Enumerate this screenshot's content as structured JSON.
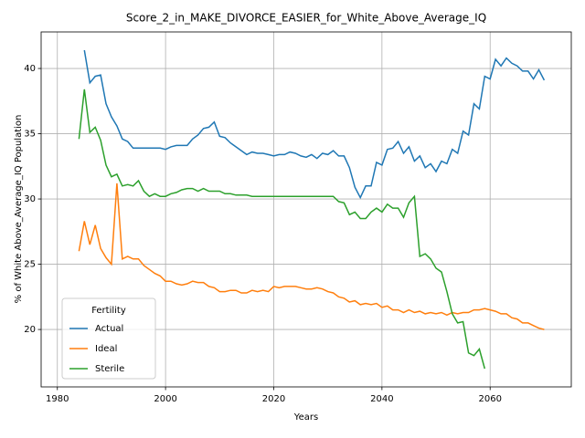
{
  "chart_data": {
    "type": "line",
    "title": "Score_2_in_MAKE_DIVORCE_EASIER_for_White_Above_Average_IQ",
    "xlabel": "Years",
    "ylabel": "% of White Above_Average_IQ Population",
    "legend_title": "Fertility",
    "legend": "lower left",
    "grid": true,
    "xlim": [
      1977,
      2075
    ],
    "ylim": [
      15.6,
      42.8
    ],
    "xticks": [
      1980,
      2000,
      2020,
      2040,
      2060
    ],
    "yticks": [
      20,
      25,
      30,
      35,
      40
    ],
    "x": [
      1984,
      1985,
      1986,
      1987,
      1988,
      1989,
      1990,
      1991,
      1992,
      1993,
      1994,
      1995,
      1996,
      1997,
      1998,
      1999,
      2000,
      2001,
      2002,
      2003,
      2004,
      2005,
      2006,
      2007,
      2008,
      2009,
      2010,
      2011,
      2012,
      2013,
      2014,
      2015,
      2016,
      2017,
      2018,
      2019,
      2020,
      2021,
      2022,
      2023,
      2024,
      2025,
      2026,
      2027,
      2028,
      2029,
      2030,
      2031,
      2032,
      2033,
      2034,
      2035,
      2036,
      2037,
      2038,
      2039,
      2040,
      2041,
      2042,
      2043,
      2044,
      2045,
      2046,
      2047,
      2048,
      2049,
      2050,
      2051,
      2052,
      2053,
      2054,
      2055,
      2056,
      2057,
      2058,
      2059,
      2060,
      2061,
      2062,
      2063,
      2064,
      2065,
      2066,
      2067,
      2068,
      2069,
      2070
    ],
    "series": [
      {
        "name": "Actual",
        "color": "#1f77b4",
        "values": [
          null,
          41.4,
          38.9,
          39.4,
          39.5,
          37.3,
          36.3,
          35.6,
          34.6,
          34.4,
          33.9,
          33.9,
          33.9,
          33.9,
          33.9,
          33.9,
          33.8,
          34.0,
          34.1,
          34.1,
          34.1,
          34.6,
          34.9,
          35.4,
          35.5,
          35.9,
          34.8,
          34.7,
          34.3,
          34.0,
          33.7,
          33.4,
          33.6,
          33.5,
          33.5,
          33.4,
          33.3,
          33.4,
          33.4,
          33.6,
          33.5,
          33.3,
          33.2,
          33.4,
          33.1,
          33.5,
          33.4,
          33.7,
          33.3,
          33.3,
          32.4,
          30.9,
          30.1,
          31.0,
          31.0,
          32.8,
          32.6,
          33.8,
          33.9,
          34.4,
          33.5,
          34.0,
          32.9,
          33.3,
          32.4,
          32.7,
          32.1,
          32.9,
          32.7,
          33.8,
          33.5,
          35.2,
          34.9,
          37.3,
          36.9,
          39.4,
          39.2,
          40.7,
          40.2,
          40.8,
          40.4,
          40.2,
          39.8,
          39.8,
          39.2,
          39.9,
          39.1
        ]
      },
      {
        "name": "Ideal",
        "color": "#ff7f0e",
        "values": [
          26.0,
          28.3,
          26.5,
          28.0,
          26.2,
          25.5,
          25.0,
          31.2,
          25.4,
          25.6,
          25.4,
          25.4,
          24.9,
          24.6,
          24.3,
          24.1,
          23.7,
          23.7,
          23.5,
          23.4,
          23.5,
          23.7,
          23.6,
          23.6,
          23.3,
          23.2,
          22.9,
          22.9,
          23.0,
          23.0,
          22.8,
          22.8,
          23.0,
          22.9,
          23.0,
          22.9,
          23.3,
          23.2,
          23.3,
          23.3,
          23.3,
          23.2,
          23.1,
          23.1,
          23.2,
          23.1,
          22.9,
          22.8,
          22.5,
          22.4,
          22.1,
          22.2,
          21.9,
          22.0,
          21.9,
          22.0,
          21.7,
          21.8,
          21.5,
          21.5,
          21.3,
          21.5,
          21.3,
          21.4,
          21.2,
          21.3,
          21.2,
          21.3,
          21.1,
          21.3,
          21.2,
          21.3,
          21.3,
          21.5,
          21.5,
          21.6,
          21.5,
          21.4,
          21.2,
          21.2,
          20.9,
          20.8,
          20.5,
          20.5,
          20.3,
          20.1,
          20.0
        ]
      },
      {
        "name": "Sterile",
        "color": "#2ca02c",
        "values": [
          34.6,
          38.4,
          35.1,
          35.5,
          34.5,
          32.6,
          31.7,
          31.9,
          31.0,
          31.1,
          31.0,
          31.4,
          30.6,
          30.2,
          30.4,
          30.2,
          30.2,
          30.4,
          30.5,
          30.7,
          30.8,
          30.8,
          30.6,
          30.8,
          30.6,
          30.6,
          30.6,
          30.4,
          30.4,
          30.3,
          30.3,
          30.3,
          30.2,
          30.2,
          30.2,
          30.2,
          30.2,
          30.2,
          30.2,
          30.2,
          30.2,
          30.2,
          30.2,
          30.2,
          30.2,
          30.2,
          30.2,
          30.2,
          29.8,
          29.7,
          28.8,
          29.0,
          28.5,
          28.5,
          29.0,
          29.3,
          29.0,
          29.6,
          29.3,
          29.3,
          28.6,
          29.7,
          30.2,
          25.6,
          25.8,
          25.4,
          24.7,
          24.4,
          22.9,
          21.2,
          20.5,
          20.6,
          18.2,
          18.0,
          18.5,
          17.0,
          null,
          null,
          null,
          null,
          null,
          null,
          null,
          null,
          null,
          null,
          null
        ]
      }
    ]
  }
}
